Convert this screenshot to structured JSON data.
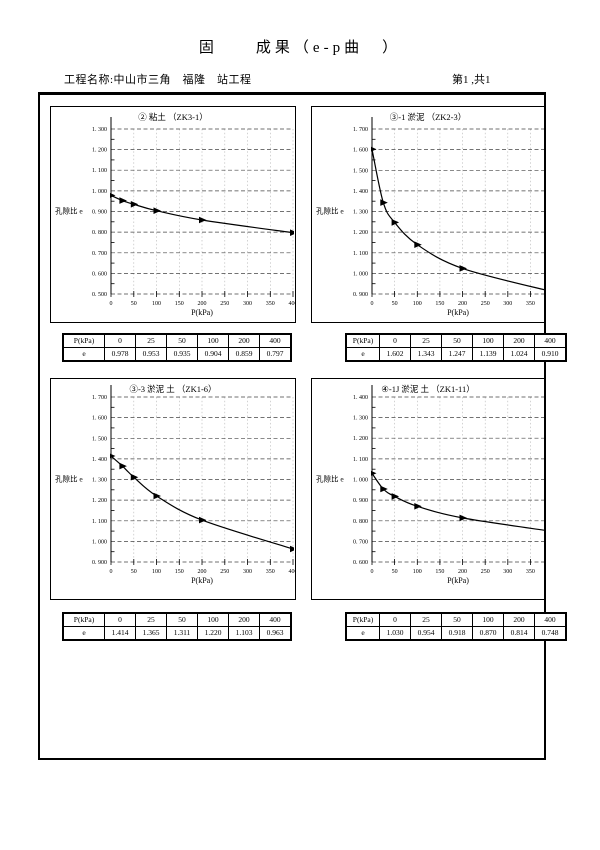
{
  "page": {
    "title": "固　　成果（e-p曲　）",
    "project_label": "工程名称:中山市三角　福隆　站工程",
    "page_number": "第1 ,共1"
  },
  "chart_data": [
    {
      "type": "line",
      "title": "② 粘土 （ZK3-1）",
      "ylabel": "孔隙比 e",
      "xlabel": "P(kPa)",
      "ylim": [
        0.5,
        1.3
      ],
      "ystep": 0.1,
      "xlim": [
        0,
        400
      ],
      "xticks": [
        0,
        50,
        100,
        150,
        200,
        250,
        300,
        350,
        400
      ],
      "x": [
        0,
        25,
        50,
        100,
        200,
        400
      ],
      "y": [
        0.978,
        0.953,
        0.935,
        0.904,
        0.859,
        0.797
      ],
      "grid": true,
      "table": {
        "header_label": "P(kPa)",
        "row_label": "e",
        "pressures": [
          "0",
          "25",
          "50",
          "100",
          "200",
          "400"
        ],
        "values": [
          "0.978",
          "0.953",
          "0.935",
          "0.904",
          "0.859",
          "0.797"
        ]
      }
    },
    {
      "type": "line",
      "title": "③-1 淤泥 （ZK2-3）",
      "ylabel": "孔隙比 e",
      "xlabel": "P(kPa)",
      "ylim": [
        0.9,
        1.7
      ],
      "ystep": 0.1,
      "xlim": [
        0,
        380
      ],
      "xticks": [
        0,
        50,
        100,
        150,
        200,
        250,
        300,
        350
      ],
      "x": [
        0,
        25,
        50,
        100,
        200,
        400
      ],
      "y": [
        1.602,
        1.343,
        1.247,
        1.139,
        1.024,
        0.91
      ],
      "grid": true,
      "table": {
        "header_label": "P(kPa)",
        "row_label": "e",
        "pressures": [
          "0",
          "25",
          "50",
          "100",
          "200",
          "400"
        ],
        "values": [
          "1.602",
          "1.343",
          "1.247",
          "1.139",
          "1.024",
          "0.910"
        ]
      }
    },
    {
      "type": "line",
      "title": "③-3 淤泥 土 （ZK1-6）",
      "ylabel": "孔隙比 e",
      "xlabel": "P(kPa)",
      "ylim": [
        0.9,
        1.7
      ],
      "ystep": 0.1,
      "xlim": [
        0,
        400
      ],
      "xticks": [
        0,
        50,
        100,
        150,
        200,
        250,
        300,
        350,
        400
      ],
      "x": [
        0,
        25,
        50,
        100,
        200,
        400
      ],
      "y": [
        1.414,
        1.365,
        1.311,
        1.22,
        1.103,
        0.963
      ],
      "grid": true,
      "table": {
        "header_label": "P(kPa)",
        "row_label": "e",
        "pressures": [
          "0",
          "25",
          "50",
          "100",
          "200",
          "400"
        ],
        "values": [
          "1.414",
          "1.365",
          "1.311",
          "1.220",
          "1.103",
          "0.963"
        ]
      }
    },
    {
      "type": "line",
      "title": "④-1J 淤泥 土 （ZK1-11）",
      "ylabel": "孔隙比 e",
      "xlabel": "P(kPa)",
      "ylim": [
        0.6,
        1.4
      ],
      "ystep": 0.1,
      "xlim": [
        0,
        380
      ],
      "xticks": [
        0,
        50,
        100,
        150,
        200,
        250,
        300,
        350
      ],
      "x": [
        0,
        25,
        50,
        100,
        200,
        400
      ],
      "y": [
        1.03,
        0.954,
        0.918,
        0.87,
        0.814,
        0.748
      ],
      "grid": true,
      "table": {
        "header_label": "P(kPa)",
        "row_label": "e",
        "pressures": [
          "0",
          "25",
          "50",
          "100",
          "200",
          "400"
        ],
        "values": [
          "1.030",
          "0.954",
          "0.918",
          "0.870",
          "0.814",
          "0.748"
        ]
      }
    }
  ],
  "style_colors": {
    "curve": "#000000",
    "h_grid": "#444444",
    "v_grid": "#b5b5b5",
    "axis": "#000000"
  }
}
